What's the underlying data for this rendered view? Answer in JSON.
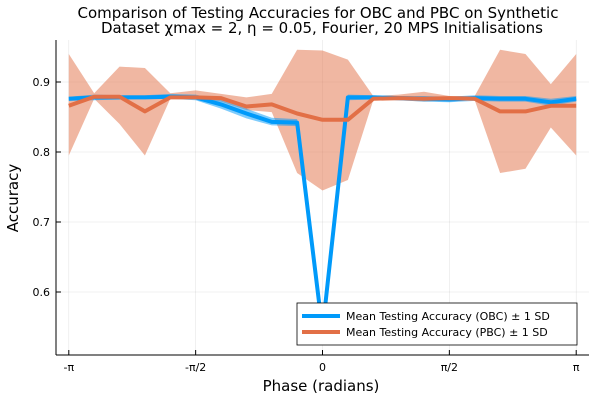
{
  "chart_data": {
    "type": "line",
    "title_line1": "Comparison of Testing Accuracies for OBC and PBC on Synthetic",
    "title_line2": "Dataset χmax = 2, η = 0.05, Fourier, 20 MPS Initialisations",
    "xlabel": "Phase (radians)",
    "ylabel": "Accuracy",
    "xlim": [
      -3.3,
      3.3
    ],
    "ylim": [
      0.51,
      0.96
    ],
    "xticks": [
      {
        "value": -3.14159,
        "label": "-π"
      },
      {
        "value": -1.5708,
        "label": "-π/2"
      },
      {
        "value": 0,
        "label": "0"
      },
      {
        "value": 1.5708,
        "label": "π/2"
      },
      {
        "value": 3.14159,
        "label": "π"
      }
    ],
    "yticks": [
      {
        "value": 0.6,
        "label": "0.6"
      },
      {
        "value": 0.7,
        "label": "0.7"
      },
      {
        "value": 0.8,
        "label": "0.8"
      },
      {
        "value": 0.9,
        "label": "0.9"
      }
    ],
    "grid": true,
    "legend_position": "bottom-right",
    "x": [
      -3.1416,
      -2.8274,
      -2.5133,
      -2.1991,
      -1.885,
      -1.5708,
      -1.2566,
      -0.9425,
      -0.6283,
      -0.3142,
      0.0,
      0.3142,
      0.6283,
      0.9425,
      1.2566,
      1.5708,
      1.885,
      2.1991,
      2.5133,
      2.8274,
      3.1416
    ],
    "series": [
      {
        "name": "Mean Testing Accuracy (OBC) ± 1 SD",
        "color": "#009AFA",
        "band_color": "#009AFA",
        "mean": [
          0.876,
          0.878,
          0.878,
          0.878,
          0.879,
          0.878,
          0.868,
          0.855,
          0.843,
          0.842,
          0.545,
          0.878,
          0.878,
          0.877,
          0.876,
          0.875,
          0.877,
          0.876,
          0.876,
          0.871,
          0.876
        ],
        "lower": [
          0.873,
          0.874,
          0.875,
          0.876,
          0.876,
          0.874,
          0.862,
          0.848,
          0.838,
          0.837,
          0.545,
          0.874,
          0.875,
          0.874,
          0.872,
          0.871,
          0.873,
          0.872,
          0.872,
          0.866,
          0.872
        ],
        "upper": [
          0.879,
          0.882,
          0.881,
          0.881,
          0.883,
          0.882,
          0.874,
          0.862,
          0.849,
          0.847,
          0.545,
          0.882,
          0.881,
          0.88,
          0.88,
          0.879,
          0.881,
          0.88,
          0.88,
          0.876,
          0.88
        ]
      },
      {
        "name": "Mean Testing Accuracy (PBC) ± 1 SD",
        "color": "#E26F46",
        "band_color": "#E26F46",
        "mean": [
          0.866,
          0.879,
          0.879,
          0.858,
          0.878,
          0.878,
          0.877,
          0.865,
          0.868,
          0.855,
          0.846,
          0.846,
          0.876,
          0.877,
          0.876,
          0.877,
          0.876,
          0.858,
          0.858,
          0.866,
          0.866
        ],
        "lower": [
          0.795,
          0.876,
          0.84,
          0.795,
          0.876,
          0.876,
          0.872,
          0.86,
          0.857,
          0.77,
          0.745,
          0.76,
          0.874,
          0.874,
          0.872,
          0.874,
          0.874,
          0.77,
          0.776,
          0.835,
          0.795
        ],
        "upper": [
          0.94,
          0.884,
          0.922,
          0.92,
          0.884,
          0.888,
          0.883,
          0.878,
          0.883,
          0.946,
          0.945,
          0.932,
          0.88,
          0.882,
          0.886,
          0.88,
          0.88,
          0.946,
          0.94,
          0.897,
          0.94
        ]
      }
    ]
  }
}
